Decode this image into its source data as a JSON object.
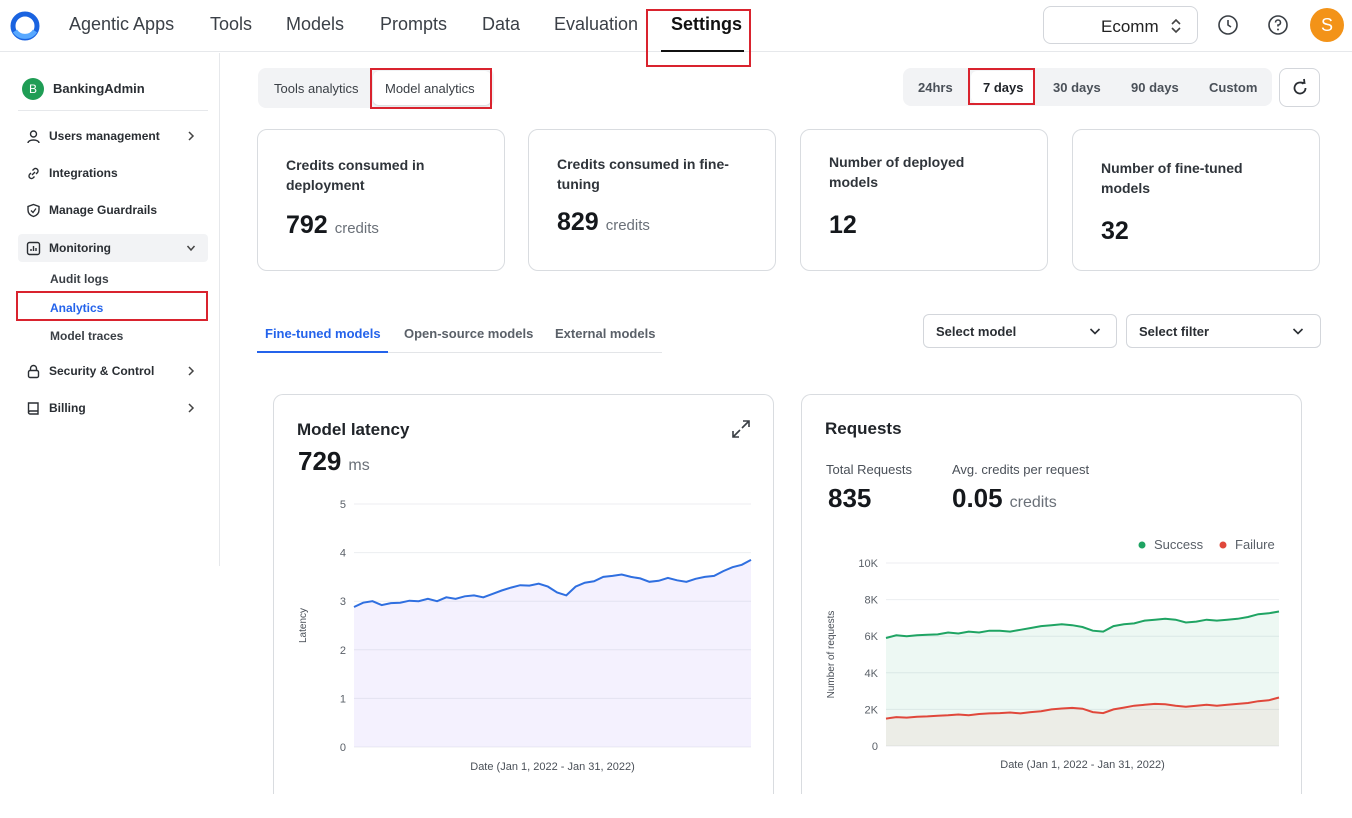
{
  "nav": {
    "items": [
      "Agentic Apps",
      "Tools",
      "Models",
      "Prompts",
      "Data",
      "Evaluation",
      "Settings"
    ],
    "active": "Settings"
  },
  "env_select": {
    "value": "Ecomm"
  },
  "user": {
    "initial": "S",
    "avatar_color": "#f39318"
  },
  "sidebar": {
    "org_initial": "B",
    "org_name": "BankingAdmin",
    "items": [
      {
        "label": "Users management",
        "icon": "user-icon",
        "has_arrow": true
      },
      {
        "label": "Integrations",
        "icon": "link-icon",
        "has_arrow": false
      },
      {
        "label": "Manage Guardrails",
        "icon": "shield-icon",
        "has_arrow": false
      },
      {
        "label": "Monitoring",
        "icon": "chart-icon",
        "expanded": true
      },
      {
        "label": "Security & Control",
        "icon": "lock-icon",
        "has_arrow": true
      },
      {
        "label": "Billing",
        "icon": "book-icon",
        "has_arrow": true
      }
    ],
    "monitoring_sub": [
      "Audit logs",
      "Analytics",
      "Model traces"
    ],
    "active_sub": "Analytics"
  },
  "analytics_toggle": {
    "options": [
      "Tools analytics",
      "Model analytics"
    ],
    "selected": "Model analytics"
  },
  "time_range": {
    "options": [
      "24hrs",
      "7 days",
      "30 days",
      "90 days",
      "Custom"
    ],
    "selected": "7 days"
  },
  "kpis": [
    {
      "title": "Credits consumed in deployment",
      "value": "792",
      "unit": "credits"
    },
    {
      "title": "Credits consumed in fine-tuning",
      "value": "829",
      "unit": "credits"
    },
    {
      "title": "Number of deployed models",
      "value": "12",
      "unit": ""
    },
    {
      "title": "Number of fine-tuned models",
      "value": "32",
      "unit": ""
    }
  ],
  "model_tabs": {
    "items": [
      "Fine-tuned models",
      "Open-source models",
      "External models"
    ],
    "selected": "Fine-tuned models"
  },
  "filters": {
    "model_placeholder": "Select model",
    "filter_placeholder": "Select filter"
  },
  "latency_card": {
    "title": "Model latency",
    "value": "729",
    "unit": "ms"
  },
  "requests_card": {
    "title": "Requests",
    "total_label": "Total Requests",
    "total_value": "835",
    "avg_label": "Avg. credits per request",
    "avg_value": "0.05",
    "avg_unit": "credits"
  },
  "colors": {
    "accent": "#2463eb",
    "highlight": "#d9232e",
    "success": "#1fa463",
    "failure": "#e0483b",
    "latency_line": "#2f6fe0"
  },
  "chart_data": [
    {
      "type": "area",
      "title": "",
      "xlabel": "Date (Jan 1, 2022 - Jan 31, 2022)",
      "ylabel": "Latency",
      "ylim": [
        0,
        5
      ],
      "yticks": [
        "0",
        "1",
        "2",
        "3",
        "4",
        "5"
      ],
      "grid": true,
      "series": [
        {
          "values": [
            2.88,
            2.97,
            3.0,
            2.92,
            2.96,
            2.97,
            3.01,
            3.0,
            3.05,
            3.0,
            3.08,
            3.05,
            3.1,
            3.12,
            3.08,
            3.15,
            3.22,
            3.28,
            3.33,
            3.32,
            3.36,
            3.3,
            3.18,
            3.12,
            3.3,
            3.38,
            3.41,
            3.5,
            3.52,
            3.55,
            3.5,
            3.47,
            3.4,
            3.42,
            3.48,
            3.43,
            3.4,
            3.46,
            3.5,
            3.52,
            3.62,
            3.7,
            3.75,
            3.85
          ]
        }
      ]
    },
    {
      "type": "area",
      "title": "",
      "xlabel": "Date (Jan 1, 2022 - Jan 31, 2022)",
      "ylabel": "Number of requests",
      "ylim": [
        0,
        10000
      ],
      "yticks": [
        "0",
        "2K",
        "4K",
        "6K",
        "8K",
        "10K"
      ],
      "legend": "top-right",
      "grid": true,
      "series": [
        {
          "name": "Success",
          "values": [
            5900,
            6050,
            6000,
            6050,
            6080,
            6100,
            6200,
            6150,
            6250,
            6200,
            6300,
            6300,
            6250,
            6350,
            6450,
            6550,
            6600,
            6650,
            6600,
            6500,
            6300,
            6250,
            6550,
            6650,
            6700,
            6850,
            6900,
            6950,
            6900,
            6750,
            6800,
            6900,
            6850,
            6900,
            6950,
            7050,
            7200,
            7250,
            7350
          ]
        },
        {
          "name": "Failure",
          "values": [
            1500,
            1580,
            1550,
            1600,
            1620,
            1650,
            1680,
            1720,
            1680,
            1750,
            1780,
            1800,
            1830,
            1780,
            1850,
            1900,
            2000,
            2050,
            2080,
            2040,
            1850,
            1800,
            2000,
            2100,
            2200,
            2250,
            2300,
            2280,
            2200,
            2150,
            2200,
            2250,
            2200,
            2250,
            2300,
            2350,
            2450,
            2500,
            2650
          ]
        }
      ]
    }
  ]
}
